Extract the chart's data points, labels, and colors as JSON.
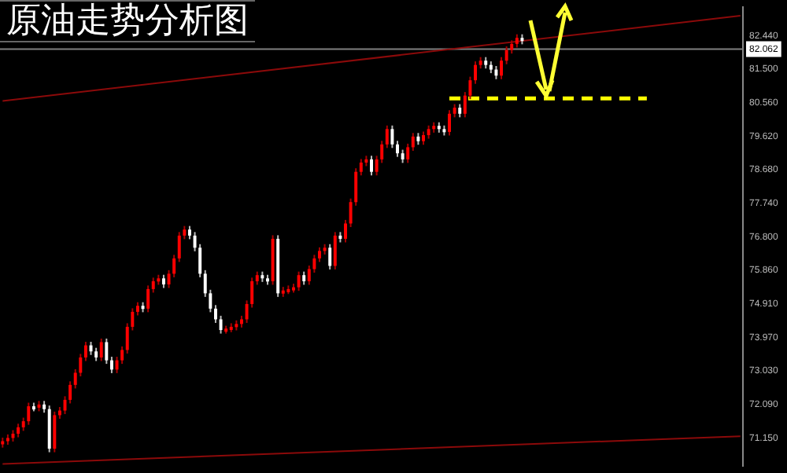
{
  "chart_data": {
    "type": "candlestick",
    "title": "原油走势分析图",
    "categories": [
      null,
      null,
      null,
      null,
      null,
      null,
      null,
      null,
      null,
      null,
      null,
      null,
      null,
      null,
      null,
      null,
      null,
      null,
      null,
      null,
      null,
      null,
      null,
      null,
      null,
      null,
      null,
      null,
      null,
      null,
      null,
      null,
      null,
      null,
      null,
      null,
      null,
      null,
      null,
      null,
      null,
      null,
      null,
      null,
      null,
      null,
      null,
      null,
      null,
      null,
      null,
      null,
      null,
      null,
      null,
      null,
      null,
      null,
      null,
      null,
      null,
      null,
      null,
      null,
      null,
      null,
      null,
      null,
      null,
      null,
      null,
      null,
      null,
      null,
      null,
      null,
      null,
      null,
      null,
      null,
      null,
      null,
      null,
      null,
      null,
      null,
      null,
      null,
      null,
      null,
      null,
      null,
      null,
      null,
      null,
      null,
      null,
      null,
      null,
      null,
      null,
      null,
      null,
      null,
      null,
      null,
      null,
      null,
      null,
      null,
      null,
      null,
      null,
      null,
      null,
      null,
      null,
      null,
      null,
      null,
      null,
      null,
      null,
      null,
      null,
      null,
      null,
      null,
      null,
      null,
      null,
      null,
      null,
      null,
      null,
      null,
      null,
      null,
      null,
      null,
      null,
      null,
      null
    ],
    "ohlc": [
      [
        70.98,
        71.16,
        70.88,
        71.06
      ],
      [
        71.06,
        71.25,
        70.96,
        71.15
      ],
      [
        71.15,
        71.37,
        71.05,
        71.27
      ],
      [
        71.27,
        71.55,
        71.17,
        71.45
      ],
      [
        71.45,
        71.72,
        71.35,
        71.62
      ],
      [
        71.62,
        72.14,
        71.52,
        72.04
      ],
      [
        72.04,
        72.14,
        71.9,
        72.0
      ],
      [
        72.0,
        72.19,
        71.9,
        72.09
      ],
      [
        72.09,
        72.19,
        71.86,
        71.96
      ],
      [
        71.96,
        72.06,
        70.75,
        70.85
      ],
      [
        70.85,
        71.89,
        70.75,
        71.79
      ],
      [
        71.79,
        72.02,
        71.69,
        71.92
      ],
      [
        71.92,
        72.32,
        71.82,
        72.22
      ],
      [
        72.22,
        72.74,
        72.12,
        72.64
      ],
      [
        72.64,
        73.08,
        72.54,
        72.98
      ],
      [
        72.98,
        73.51,
        72.88,
        73.41
      ],
      [
        73.41,
        73.85,
        73.31,
        73.75
      ],
      [
        73.75,
        73.85,
        73.48,
        73.58
      ],
      [
        73.58,
        73.68,
        73.31,
        73.41
      ],
      [
        73.41,
        73.94,
        73.31,
        73.84
      ],
      [
        73.84,
        73.94,
        73.23,
        73.33
      ],
      [
        73.33,
        73.43,
        72.97,
        73.07
      ],
      [
        73.07,
        73.43,
        72.97,
        73.33
      ],
      [
        73.33,
        73.72,
        73.23,
        73.62
      ],
      [
        73.62,
        74.37,
        73.52,
        74.27
      ],
      [
        74.27,
        74.79,
        74.17,
        74.69
      ],
      [
        74.69,
        74.96,
        74.59,
        74.86
      ],
      [
        74.86,
        74.96,
        74.68,
        74.78
      ],
      [
        74.78,
        75.43,
        74.68,
        75.33
      ],
      [
        75.33,
        75.65,
        75.23,
        75.55
      ],
      [
        75.55,
        75.73,
        75.45,
        75.63
      ],
      [
        75.63,
        75.73,
        75.36,
        75.46
      ],
      [
        75.46,
        75.86,
        75.36,
        75.76
      ],
      [
        75.76,
        76.29,
        75.66,
        76.19
      ],
      [
        76.19,
        76.93,
        76.09,
        76.83
      ],
      [
        76.83,
        77.1,
        76.73,
        77.0
      ],
      [
        77.0,
        77.1,
        76.73,
        76.83
      ],
      [
        76.83,
        76.93,
        76.39,
        76.49
      ],
      [
        76.49,
        76.59,
        75.66,
        75.76
      ],
      [
        75.76,
        75.86,
        75.11,
        75.21
      ],
      [
        75.21,
        75.31,
        74.68,
        74.78
      ],
      [
        74.78,
        74.88,
        74.38,
        74.48
      ],
      [
        74.48,
        74.58,
        74.08,
        74.18
      ],
      [
        74.18,
        74.3,
        74.08,
        74.22
      ],
      [
        74.22,
        74.37,
        74.12,
        74.27
      ],
      [
        74.27,
        74.45,
        74.17,
        74.35
      ],
      [
        74.35,
        74.58,
        74.25,
        74.48
      ],
      [
        74.48,
        75.01,
        74.38,
        74.91
      ],
      [
        74.91,
        75.65,
        74.81,
        75.55
      ],
      [
        75.55,
        75.82,
        75.45,
        75.72
      ],
      [
        75.72,
        75.82,
        75.53,
        75.63
      ],
      [
        75.63,
        75.73,
        75.45,
        75.55
      ],
      [
        75.55,
        76.84,
        75.45,
        76.74
      ],
      [
        76.74,
        76.84,
        75.11,
        75.21
      ],
      [
        75.21,
        75.39,
        75.11,
        75.29
      ],
      [
        75.29,
        75.43,
        75.19,
        75.33
      ],
      [
        75.33,
        75.48,
        75.23,
        75.38
      ],
      [
        75.38,
        75.82,
        75.28,
        75.72
      ],
      [
        75.72,
        75.82,
        75.45,
        75.55
      ],
      [
        75.55,
        75.99,
        75.45,
        75.89
      ],
      [
        75.89,
        76.29,
        75.79,
        76.19
      ],
      [
        76.19,
        76.5,
        76.09,
        76.4
      ],
      [
        76.4,
        76.59,
        76.3,
        76.49
      ],
      [
        76.49,
        76.59,
        75.88,
        75.98
      ],
      [
        75.98,
        76.93,
        75.88,
        76.83
      ],
      [
        76.83,
        76.93,
        76.64,
        76.74
      ],
      [
        76.74,
        77.27,
        76.64,
        77.17
      ],
      [
        77.17,
        77.87,
        77.07,
        77.77
      ],
      [
        77.77,
        78.72,
        77.67,
        78.62
      ],
      [
        78.62,
        78.98,
        78.52,
        78.88
      ],
      [
        78.88,
        79.07,
        78.78,
        78.97
      ],
      [
        78.97,
        79.07,
        78.52,
        78.62
      ],
      [
        78.62,
        79.07,
        78.52,
        78.97
      ],
      [
        78.97,
        79.49,
        78.87,
        79.39
      ],
      [
        79.39,
        79.92,
        79.29,
        79.82
      ],
      [
        79.82,
        79.92,
        79.29,
        79.39
      ],
      [
        79.39,
        79.49,
        79.04,
        79.14
      ],
      [
        79.14,
        79.24,
        78.87,
        78.97
      ],
      [
        78.97,
        79.41,
        78.87,
        79.31
      ],
      [
        79.31,
        79.71,
        79.21,
        79.61
      ],
      [
        79.61,
        79.71,
        79.38,
        79.48
      ],
      [
        79.48,
        79.75,
        79.38,
        79.65
      ],
      [
        79.65,
        79.92,
        79.55,
        79.82
      ],
      [
        79.82,
        80.01,
        79.72,
        79.91
      ],
      [
        79.91,
        80.01,
        79.72,
        79.82
      ],
      [
        79.82,
        79.92,
        79.64,
        79.74
      ],
      [
        79.74,
        80.35,
        79.64,
        80.25
      ],
      [
        80.25,
        80.52,
        80.15,
        80.42
      ],
      [
        80.42,
        80.52,
        80.15,
        80.25
      ],
      [
        80.25,
        80.86,
        80.15,
        80.76
      ],
      [
        80.76,
        81.29,
        80.66,
        81.19
      ],
      [
        81.19,
        81.72,
        81.09,
        81.62
      ],
      [
        81.62,
        81.84,
        81.52,
        81.74
      ],
      [
        81.74,
        81.84,
        81.52,
        81.62
      ],
      [
        81.62,
        81.72,
        81.39,
        81.49
      ],
      [
        81.49,
        81.59,
        81.22,
        81.32
      ],
      [
        81.32,
        81.84,
        81.22,
        81.74
      ],
      [
        81.74,
        82.14,
        81.64,
        82.04
      ],
      [
        82.04,
        82.31,
        81.94,
        82.21
      ],
      [
        82.21,
        82.48,
        82.11,
        82.38
      ],
      [
        82.38,
        82.48,
        82.2,
        82.3
      ],
      null,
      null,
      null,
      null,
      null,
      null,
      null,
      null,
      null,
      null,
      null,
      null,
      null,
      null,
      null,
      null,
      null,
      null,
      null,
      null,
      null,
      null,
      null,
      null,
      null,
      null,
      null,
      null,
      null,
      null,
      null,
      null,
      null,
      null,
      null,
      null,
      null,
      null,
      null,
      null,
      null,
      null
    ],
    "series": [
      {
        "type": "line",
        "color": "#8b0a0a",
        "values": [
          80.61,
          null,
          null,
          null,
          null,
          null,
          null,
          null,
          null,
          null,
          null,
          null,
          null,
          null,
          null,
          null,
          null,
          null,
          null,
          null,
          null,
          null,
          null,
          null,
          null,
          null,
          null,
          null,
          null,
          null,
          null,
          null,
          null,
          null,
          null,
          null,
          null,
          null,
          null,
          null,
          null,
          null,
          null,
          null,
          null,
          null,
          null,
          null,
          null,
          null,
          null,
          null,
          null,
          null,
          null,
          null,
          null,
          null,
          null,
          null,
          null,
          null,
          null,
          null,
          null,
          null,
          null,
          null,
          null,
          null,
          null,
          null,
          null,
          null,
          null,
          null,
          null,
          null,
          null,
          null,
          null,
          null,
          null,
          null,
          null,
          null,
          null,
          null,
          null,
          null,
          null,
          null,
          null,
          null,
          null,
          null,
          null,
          null,
          null,
          null,
          null,
          null,
          null,
          null,
          null,
          null,
          null,
          null,
          null,
          null,
          null,
          null,
          null,
          null,
          null,
          null,
          null,
          null,
          null,
          null,
          null,
          null,
          null,
          null,
          null,
          null,
          null,
          null,
          null,
          null,
          null,
          null,
          null,
          null,
          null,
          null,
          null,
          null,
          null,
          null,
          null,
          null,
          83.0
        ]
      },
      {
        "type": "line",
        "color": "#8b0a0a",
        "values": [
          70.42,
          null,
          null,
          null,
          null,
          null,
          null,
          null,
          null,
          null,
          null,
          null,
          null,
          null,
          null,
          null,
          null,
          null,
          null,
          null,
          null,
          null,
          null,
          null,
          null,
          null,
          null,
          null,
          null,
          null,
          null,
          null,
          null,
          null,
          null,
          null,
          null,
          null,
          null,
          null,
          null,
          null,
          null,
          null,
          null,
          null,
          null,
          null,
          null,
          null,
          null,
          null,
          null,
          null,
          null,
          null,
          null,
          null,
          null,
          null,
          null,
          null,
          null,
          null,
          null,
          null,
          null,
          null,
          null,
          null,
          null,
          null,
          null,
          null,
          null,
          null,
          null,
          null,
          null,
          null,
          null,
          null,
          null,
          null,
          null,
          null,
          null,
          null,
          null,
          null,
          null,
          null,
          null,
          null,
          null,
          null,
          null,
          null,
          null,
          null,
          null,
          null,
          null,
          null,
          null,
          null,
          null,
          null,
          null,
          null,
          null,
          null,
          null,
          null,
          null,
          null,
          null,
          null,
          null,
          null,
          null,
          null,
          null,
          null,
          null,
          null,
          null,
          null,
          null,
          null,
          null,
          null,
          null,
          null,
          null,
          null,
          null,
          null,
          null,
          null,
          null,
          null,
          71.2
        ]
      },
      {
        "type": "line",
        "color": "#ffff00",
        "line_style": "dashed",
        "values": [
          null,
          null,
          null,
          null,
          null,
          null,
          null,
          null,
          null,
          null,
          null,
          null,
          null,
          null,
          null,
          null,
          null,
          null,
          null,
          null,
          null,
          null,
          null,
          null,
          null,
          null,
          null,
          null,
          null,
          null,
          null,
          null,
          null,
          null,
          null,
          null,
          null,
          null,
          null,
          null,
          null,
          null,
          null,
          null,
          null,
          null,
          null,
          null,
          null,
          null,
          null,
          null,
          null,
          null,
          null,
          null,
          null,
          null,
          null,
          null,
          null,
          null,
          null,
          null,
          null,
          null,
          null,
          null,
          null,
          null,
          null,
          null,
          null,
          null,
          null,
          null,
          null,
          null,
          null,
          null,
          null,
          null,
          null,
          null,
          null,
          null,
          80.68,
          null,
          null,
          null,
          null,
          null,
          null,
          null,
          null,
          null,
          null,
          null,
          null,
          null,
          null,
          null,
          null,
          null,
          null,
          null,
          null,
          null,
          null,
          null,
          null,
          null,
          null,
          null,
          null,
          null,
          null,
          null,
          null,
          null,
          null,
          null,
          null,
          null,
          80.68,
          null,
          null,
          null,
          null,
          null,
          null,
          null,
          null,
          null,
          null,
          null,
          null,
          null,
          null,
          null,
          null,
          null,
          null
        ]
      }
    ],
    "ref_lines": [
      {
        "axis": "y",
        "value": 82.062,
        "label": "82.062",
        "color": "#808080"
      }
    ],
    "ylim": [
      70.37,
      83.24
    ],
    "yticks": [
      {
        "value": 82.44,
        "label": "82.440"
      },
      {
        "value": 81.5,
        "label": "81.500"
      },
      {
        "value": 80.56,
        "label": "80.560"
      },
      {
        "value": 79.62,
        "label": "79.620"
      },
      {
        "value": 78.68,
        "label": "78.680"
      },
      {
        "value": 77.74,
        "label": "77.740"
      },
      {
        "value": 76.8,
        "label": "76.800"
      },
      {
        "value": 75.86,
        "label": "75.860"
      },
      {
        "value": 74.91,
        "label": "74.910"
      },
      {
        "value": 73.97,
        "label": "73.970"
      },
      {
        "value": 73.03,
        "label": "73.030"
      },
      {
        "value": 72.09,
        "label": "72.090"
      },
      {
        "value": 71.15,
        "label": "71.150"
      }
    ],
    "tick_labels": "y",
    "grid": false,
    "legend": false,
    "marker": "none"
  }
}
